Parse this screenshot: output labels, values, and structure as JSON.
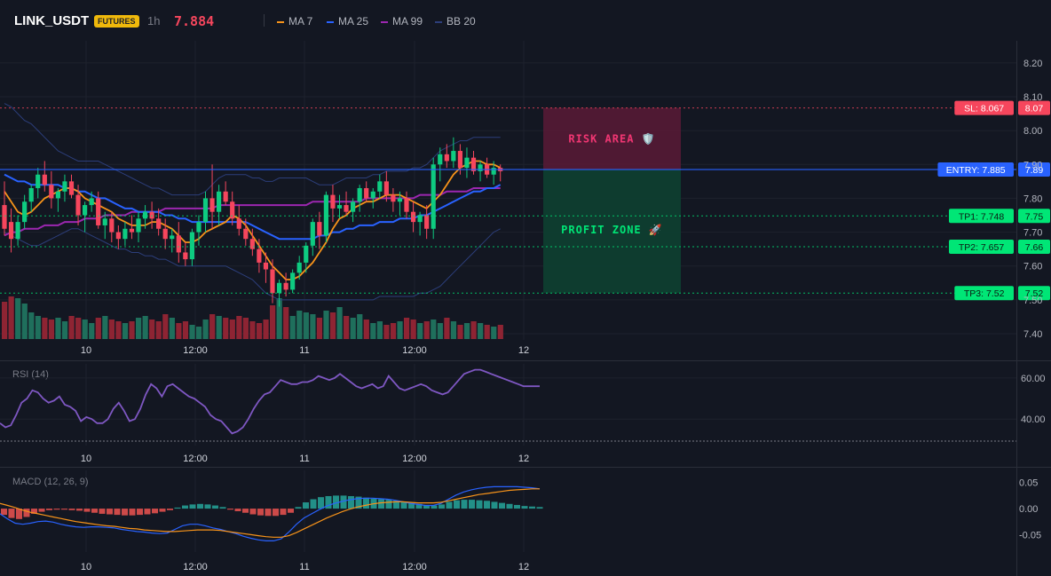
{
  "header": {
    "symbol": "LINK_USDT",
    "badge": "FUTURES",
    "timeframe": "1h",
    "last_price": "7.884"
  },
  "legend": [
    {
      "label": "MA 7",
      "color": "#f7931a"
    },
    {
      "label": "MA 25",
      "color": "#2962ff"
    },
    {
      "label": "MA 99",
      "color": "#9c27b0"
    },
    {
      "label": "BB 20",
      "color": "#2c3e7a"
    }
  ],
  "chart_data": [
    {
      "type": "candlestick",
      "symbol": "LINK_USDT",
      "y_ticks": [
        "8.20",
        "8.10",
        "8.00",
        "7.90",
        "7.80",
        "7.70",
        "7.60",
        "7.50",
        "7.40"
      ],
      "ylim": [
        7.4,
        8.2
      ],
      "x_tick_labels": [
        "10",
        "12:00",
        "11",
        "12:00",
        "12"
      ],
      "candles": [
        [
          7.78,
          7.85,
          7.69,
          7.71
        ],
        [
          7.73,
          7.77,
          7.64,
          7.68
        ],
        [
          7.68,
          7.75,
          7.66,
          7.73
        ],
        [
          7.73,
          7.81,
          7.71,
          7.79
        ],
        [
          7.79,
          7.84,
          7.76,
          7.83
        ],
        [
          7.83,
          7.89,
          7.8,
          7.87
        ],
        [
          7.87,
          7.91,
          7.82,
          7.84
        ],
        [
          7.84,
          7.88,
          7.77,
          7.8
        ],
        [
          7.8,
          7.83,
          7.76,
          7.82
        ],
        [
          7.82,
          7.87,
          7.79,
          7.85
        ],
        [
          7.85,
          7.87,
          7.8,
          7.81
        ],
        [
          7.81,
          7.84,
          7.72,
          7.75
        ],
        [
          7.75,
          7.79,
          7.7,
          7.78
        ],
        [
          7.78,
          7.82,
          7.76,
          7.8
        ],
        [
          7.8,
          7.82,
          7.71,
          7.72
        ],
        [
          7.72,
          7.76,
          7.68,
          7.74
        ],
        [
          7.74,
          7.76,
          7.67,
          7.7
        ],
        [
          7.7,
          7.72,
          7.65,
          7.68
        ],
        [
          7.68,
          7.73,
          7.66,
          7.71
        ],
        [
          7.71,
          7.75,
          7.68,
          7.7
        ],
        [
          7.7,
          7.76,
          7.67,
          7.74
        ],
        [
          7.74,
          7.78,
          7.71,
          7.76
        ],
        [
          7.76,
          7.79,
          7.71,
          7.74
        ],
        [
          7.74,
          7.77,
          7.69,
          7.71
        ],
        [
          7.71,
          7.74,
          7.65,
          7.68
        ],
        [
          7.68,
          7.71,
          7.64,
          7.69
        ],
        [
          7.69,
          7.73,
          7.61,
          7.64
        ],
        [
          7.64,
          7.67,
          7.6,
          7.62
        ],
        [
          7.62,
          7.71,
          7.6,
          7.7
        ],
        [
          7.7,
          7.75,
          7.66,
          7.73
        ],
        [
          7.73,
          7.82,
          7.7,
          7.8
        ],
        [
          7.8,
          7.9,
          7.71,
          7.76
        ],
        [
          7.76,
          7.84,
          7.72,
          7.82
        ],
        [
          7.82,
          7.85,
          7.78,
          7.79
        ],
        [
          7.79,
          7.82,
          7.72,
          7.74
        ],
        [
          7.74,
          7.78,
          7.69,
          7.71
        ],
        [
          7.71,
          7.74,
          7.66,
          7.68
        ],
        [
          7.68,
          7.71,
          7.63,
          7.65
        ],
        [
          7.65,
          7.68,
          7.58,
          7.61
        ],
        [
          7.61,
          7.64,
          7.55,
          7.59
        ],
        [
          7.59,
          7.62,
          7.49,
          7.52
        ],
        [
          7.52,
          7.56,
          7.48,
          7.55
        ],
        [
          7.55,
          7.58,
          7.51,
          7.53
        ],
        [
          7.53,
          7.59,
          7.52,
          7.58
        ],
        [
          7.58,
          7.63,
          7.56,
          7.61
        ],
        [
          7.61,
          7.67,
          7.58,
          7.66
        ],
        [
          7.66,
          7.74,
          7.63,
          7.73
        ],
        [
          7.73,
          7.76,
          7.65,
          7.69
        ],
        [
          7.69,
          7.82,
          7.67,
          7.81
        ],
        [
          7.81,
          7.84,
          7.73,
          7.77
        ],
        [
          7.77,
          7.81,
          7.74,
          7.78
        ],
        [
          7.78,
          7.82,
          7.75,
          7.76
        ],
        [
          7.76,
          7.8,
          7.73,
          7.79
        ],
        [
          7.79,
          7.84,
          7.76,
          7.83
        ],
        [
          7.83,
          7.85,
          7.79,
          7.8
        ],
        [
          7.8,
          7.83,
          7.77,
          7.82
        ],
        [
          7.82,
          7.87,
          7.8,
          7.85
        ],
        [
          7.85,
          7.88,
          7.79,
          7.81
        ],
        [
          7.81,
          7.83,
          7.76,
          7.79
        ],
        [
          7.79,
          7.82,
          7.75,
          7.8
        ],
        [
          7.8,
          7.82,
          7.74,
          7.76
        ],
        [
          7.76,
          7.79,
          7.7,
          7.73
        ],
        [
          7.73,
          7.76,
          7.69,
          7.75
        ],
        [
          7.75,
          7.78,
          7.68,
          7.71
        ],
        [
          7.71,
          7.92,
          7.68,
          7.9
        ],
        [
          7.9,
          7.95,
          7.85,
          7.93
        ],
        [
          7.93,
          7.96,
          7.89,
          7.91
        ],
        [
          7.91,
          7.98,
          7.89,
          7.94
        ],
        [
          7.94,
          7.96,
          7.87,
          7.89
        ],
        [
          7.89,
          7.95,
          7.86,
          7.92
        ],
        [
          7.92,
          7.94,
          7.87,
          7.88
        ],
        [
          7.88,
          7.91,
          7.85,
          7.9
        ],
        [
          7.9,
          7.92,
          7.86,
          7.87
        ],
        [
          7.87,
          7.91,
          7.84,
          7.89
        ],
        [
          7.89,
          7.9,
          7.85,
          7.88
        ]
      ],
      "ma7": [
        7.82,
        7.79,
        7.76,
        7.75,
        7.76,
        7.78,
        7.8,
        7.81,
        7.82,
        7.83,
        7.83,
        7.82,
        7.8,
        7.79,
        7.78,
        7.77,
        7.76,
        7.74,
        7.73,
        7.72,
        7.72,
        7.72,
        7.73,
        7.73,
        7.72,
        7.71,
        7.69,
        7.67,
        7.67,
        7.68,
        7.7,
        7.71,
        7.72,
        7.73,
        7.75,
        7.74,
        7.72,
        7.69,
        7.66,
        7.63,
        7.6,
        7.58,
        7.56,
        7.56,
        7.57,
        7.59,
        7.61,
        7.64,
        7.67,
        7.71,
        7.74,
        7.75,
        7.77,
        7.78,
        7.79,
        7.79,
        7.8,
        7.81,
        7.81,
        7.81,
        7.8,
        7.79,
        7.78,
        7.77,
        7.79,
        7.81,
        7.84,
        7.87,
        7.89,
        7.9,
        7.91,
        7.91,
        7.9,
        7.9,
        7.89
      ],
      "ma25": [
        7.87,
        7.86,
        7.85,
        7.85,
        7.84,
        7.84,
        7.84,
        7.84,
        7.84,
        7.83,
        7.83,
        7.82,
        7.82,
        7.81,
        7.8,
        7.8,
        7.79,
        7.78,
        7.77,
        7.77,
        7.76,
        7.76,
        7.76,
        7.76,
        7.75,
        7.75,
        7.74,
        7.74,
        7.73,
        7.73,
        7.73,
        7.73,
        7.73,
        7.73,
        7.73,
        7.73,
        7.73,
        7.72,
        7.71,
        7.7,
        7.69,
        7.68,
        7.68,
        7.68,
        7.68,
        7.68,
        7.68,
        7.69,
        7.69,
        7.7,
        7.7,
        7.71,
        7.71,
        7.72,
        7.72,
        7.72,
        7.73,
        7.73,
        7.73,
        7.74,
        7.74,
        7.74,
        7.75,
        7.75,
        7.76,
        7.77,
        7.78,
        7.79,
        7.8,
        7.81,
        7.82,
        7.82,
        7.83,
        7.83,
        7.84
      ],
      "ma99": [
        7.69,
        7.7,
        7.7,
        7.71,
        7.71,
        7.71,
        7.72,
        7.72,
        7.72,
        7.73,
        7.73,
        7.73,
        7.74,
        7.74,
        7.74,
        7.75,
        7.75,
        7.75,
        7.75,
        7.76,
        7.76,
        7.76,
        7.76,
        7.76,
        7.77,
        7.77,
        7.77,
        7.77,
        7.77,
        7.77,
        7.77,
        7.77,
        7.78,
        7.78,
        7.78,
        7.78,
        7.78,
        7.78,
        7.78,
        7.78,
        7.78,
        7.78,
        7.78,
        7.78,
        7.78,
        7.78,
        7.79,
        7.79,
        7.79,
        7.79,
        7.79,
        7.79,
        7.79,
        7.79,
        7.8,
        7.8,
        7.8,
        7.8,
        7.8,
        7.8,
        7.8,
        7.8,
        7.81,
        7.81,
        7.81,
        7.81,
        7.82,
        7.82,
        7.82,
        7.82,
        7.83,
        7.83,
        7.83,
        7.83,
        7.83
      ],
      "bb_upper": [
        8.08,
        8.07,
        8.05,
        8.03,
        8.02,
        8.0,
        7.98,
        7.96,
        7.94,
        7.93,
        7.92,
        7.91,
        7.91,
        7.91,
        7.91,
        7.9,
        7.89,
        7.88,
        7.87,
        7.86,
        7.85,
        7.84,
        7.83,
        7.83,
        7.82,
        7.81,
        7.81,
        7.81,
        7.81,
        7.81,
        7.82,
        7.84,
        7.86,
        7.87,
        7.87,
        7.87,
        7.87,
        7.86,
        7.86,
        7.85,
        7.85,
        7.86,
        7.86,
        7.86,
        7.86,
        7.86,
        7.85,
        7.84,
        7.84,
        7.84,
        7.85,
        7.86,
        7.86,
        7.86,
        7.86,
        7.87,
        7.87,
        7.88,
        7.88,
        7.88,
        7.88,
        7.89,
        7.89,
        7.9,
        7.92,
        7.94,
        7.95,
        7.96,
        7.97,
        7.97,
        7.98,
        7.98,
        7.98,
        7.98,
        7.98
      ],
      "bb_lower": [
        7.7,
        7.69,
        7.68,
        7.67,
        7.66,
        7.66,
        7.67,
        7.68,
        7.69,
        7.7,
        7.71,
        7.71,
        7.7,
        7.69,
        7.68,
        7.67,
        7.66,
        7.65,
        7.65,
        7.64,
        7.64,
        7.63,
        7.63,
        7.62,
        7.62,
        7.61,
        7.6,
        7.6,
        7.6,
        7.6,
        7.6,
        7.6,
        7.6,
        7.6,
        7.59,
        7.58,
        7.57,
        7.56,
        7.54,
        7.52,
        7.51,
        7.5,
        7.5,
        7.5,
        7.5,
        7.5,
        7.5,
        7.5,
        7.5,
        7.5,
        7.5,
        7.5,
        7.5,
        7.5,
        7.5,
        7.5,
        7.51,
        7.51,
        7.51,
        7.51,
        7.51,
        7.51,
        7.52,
        7.52,
        7.53,
        7.54,
        7.56,
        7.58,
        7.6,
        7.62,
        7.64,
        7.66,
        7.68,
        7.7,
        7.71
      ],
      "volume": [
        21,
        24,
        23,
        20,
        15,
        13,
        12,
        11,
        12,
        10,
        13,
        12,
        11,
        9,
        12,
        13,
        11,
        10,
        9,
        10,
        12,
        13,
        11,
        10,
        14,
        12,
        9,
        10,
        8,
        7,
        11,
        14,
        13,
        12,
        11,
        13,
        12,
        10,
        9,
        11,
        19,
        23,
        18,
        13,
        16,
        15,
        14,
        12,
        16,
        15,
        18,
        13,
        12,
        14,
        11,
        9,
        10,
        8,
        9,
        10,
        12,
        11,
        9,
        10,
        11,
        9,
        12,
        10,
        8,
        9,
        10,
        9,
        8,
        7,
        8
      ],
      "volume_up_color": "#1f6f5c",
      "volume_down_color": "#8e2433",
      "up_color": "#0ecb81",
      "down_color": "#f6465d",
      "levels": [
        {
          "label": "SL: 8.067",
          "value": 8.067,
          "axis_label": "8.07",
          "color": "#f6465d"
        },
        {
          "label": "ENTRY: 7.885",
          "value": 7.885,
          "axis_label": "7.89",
          "color": "#2962ff"
        },
        {
          "label": "TP1: 7.748",
          "value": 7.748,
          "axis_label": "7.75",
          "color": "#00e676"
        },
        {
          "label": "TP2: 7.657",
          "value": 7.657,
          "axis_label": "7.66",
          "color": "#00e676"
        },
        {
          "label": "TP3: 7.52",
          "value": 7.52,
          "axis_label": "7.52",
          "color": "#00e676"
        }
      ],
      "zones": {
        "risk": "RISK AREA 🛡️",
        "profit": "PROFIT ZONE 🚀"
      }
    },
    {
      "type": "line",
      "title": "RSI (14)",
      "y_ticks": [
        "60.00",
        "40.00"
      ],
      "ylim": [
        28,
        66
      ],
      "values": [
        38,
        36,
        37,
        42,
        48,
        50,
        54,
        53,
        50,
        48,
        49,
        51,
        47,
        46,
        44,
        39,
        41,
        40,
        38,
        38,
        40,
        45,
        48,
        44,
        39,
        40,
        45,
        52,
        57,
        55,
        51,
        56,
        57,
        55,
        53,
        51,
        50,
        48,
        46,
        42,
        40,
        39,
        36,
        33,
        34,
        36,
        40,
        45,
        49,
        52,
        53,
        56,
        59,
        58,
        57,
        57,
        58,
        58,
        59,
        61,
        60,
        59,
        60,
        62,
        60,
        58,
        56,
        55,
        56,
        57,
        55,
        56,
        61,
        58,
        55,
        54,
        55,
        56,
        57,
        56,
        54,
        53,
        52,
        53,
        56,
        59,
        62,
        63,
        64,
        64,
        63,
        62,
        61,
        60,
        59,
        58,
        57,
        56,
        56,
        56,
        56
      ]
    },
    {
      "type": "bar+line",
      "title": "MACD (12, 26, 9)",
      "y_ticks": [
        "0.05",
        "0.00",
        "-0.05"
      ],
      "ylim": [
        -0.08,
        0.07
      ],
      "histogram": [
        -0.012,
        -0.018,
        -0.02,
        -0.016,
        -0.01,
        -0.006,
        -0.003,
        -0.002,
        -0.002,
        -0.003,
        -0.004,
        -0.006,
        -0.008,
        -0.01,
        -0.011,
        -0.012,
        -0.013,
        -0.013,
        -0.012,
        -0.011,
        -0.009,
        -0.006,
        -0.003,
        0.002,
        0.006,
        0.008,
        0.009,
        0.008,
        0.006,
        0.003,
        -0.002,
        -0.005,
        -0.008,
        -0.011,
        -0.013,
        -0.014,
        -0.014,
        -0.012,
        -0.008,
        0.003,
        0.012,
        0.018,
        0.022,
        0.024,
        0.025,
        0.025,
        0.024,
        0.023,
        0.021,
        0.019,
        0.018,
        0.017,
        0.015,
        0.013,
        0.011,
        0.009,
        0.007,
        0.006,
        0.008,
        0.013,
        0.016,
        0.017,
        0.017,
        0.016,
        0.015,
        0.013,
        0.011,
        0.009,
        0.007,
        0.005,
        0.004,
        0.003
      ],
      "macd_line": [
        -0.01,
        -0.02,
        -0.028,
        -0.03,
        -0.028,
        -0.025,
        -0.024,
        -0.026,
        -0.03,
        -0.033,
        -0.035,
        -0.036,
        -0.035,
        -0.035,
        -0.036,
        -0.037,
        -0.04,
        -0.042,
        -0.044,
        -0.045,
        -0.047,
        -0.048,
        -0.047,
        -0.04,
        -0.033,
        -0.03,
        -0.03,
        -0.033,
        -0.037,
        -0.04,
        -0.044,
        -0.048,
        -0.053,
        -0.057,
        -0.06,
        -0.062,
        -0.062,
        -0.058,
        -0.045,
        -0.03,
        -0.018,
        -0.01,
        -0.002,
        0.005,
        0.01,
        0.014,
        0.017,
        0.019,
        0.02,
        0.02,
        0.019,
        0.018,
        0.016,
        0.013,
        0.01,
        0.008,
        0.006,
        0.006,
        0.01,
        0.018,
        0.026,
        0.032,
        0.036,
        0.039,
        0.041,
        0.042,
        0.042,
        0.042,
        0.042,
        0.041,
        0.04,
        0.038
      ],
      "signal_line": [
        0.01,
        0.006,
        0.002,
        -0.003,
        -0.007,
        -0.01,
        -0.013,
        -0.016,
        -0.019,
        -0.022,
        -0.025,
        -0.027,
        -0.029,
        -0.031,
        -0.033,
        -0.034,
        -0.036,
        -0.038,
        -0.039,
        -0.041,
        -0.042,
        -0.043,
        -0.044,
        -0.044,
        -0.043,
        -0.042,
        -0.041,
        -0.041,
        -0.041,
        -0.042,
        -0.044,
        -0.046,
        -0.048,
        -0.05,
        -0.052,
        -0.054,
        -0.055,
        -0.055,
        -0.052,
        -0.046,
        -0.039,
        -0.032,
        -0.025,
        -0.018,
        -0.012,
        -0.006,
        -0.001,
        0.003,
        0.006,
        0.009,
        0.011,
        0.012,
        0.013,
        0.013,
        0.012,
        0.011,
        0.011,
        0.011,
        0.012,
        0.015,
        0.018,
        0.021,
        0.024,
        0.027,
        0.029,
        0.031,
        0.033,
        0.035,
        0.036,
        0.037,
        0.038,
        0.038
      ]
    }
  ]
}
